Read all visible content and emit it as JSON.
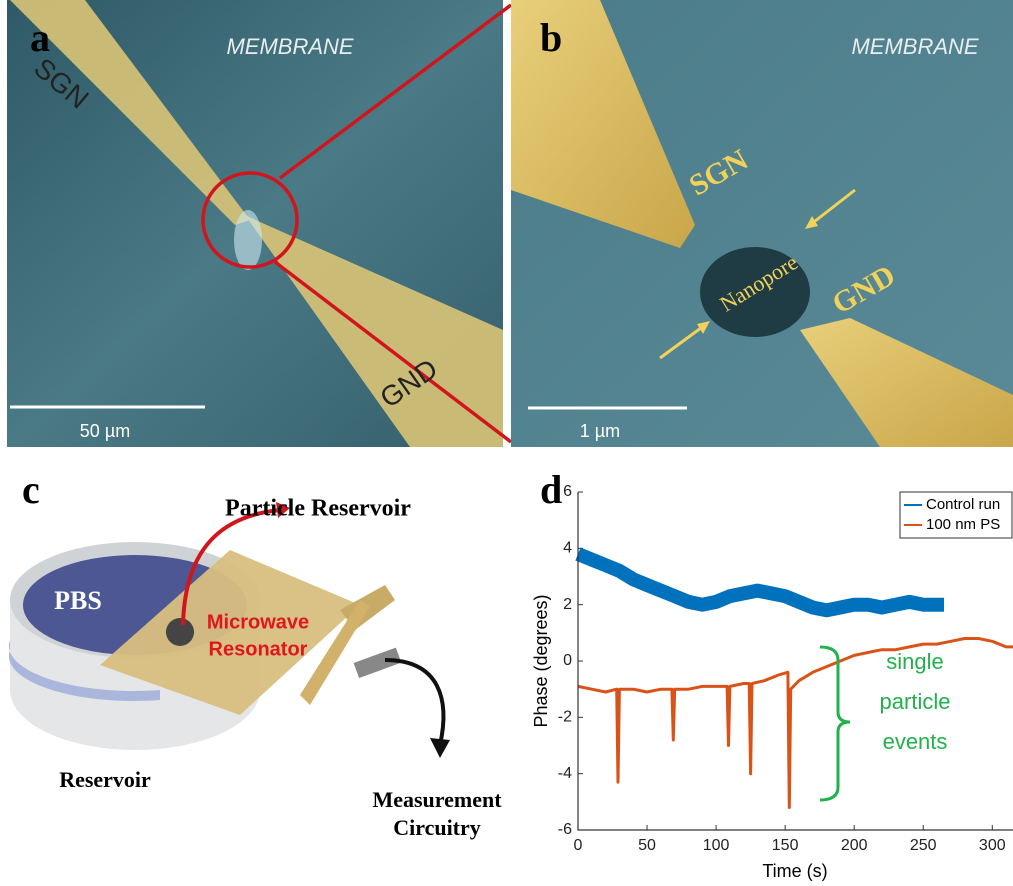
{
  "panels": {
    "a": {
      "label": "a",
      "membrane": "MEMBRANE",
      "sgn": "SGN",
      "gnd": "GND",
      "scale": "50 µm"
    },
    "b": {
      "label": "b",
      "membrane": "MEMBRANE",
      "sgn": "SGN",
      "gnd": "GND",
      "nanopore": "Nanopore",
      "scale": "1 µm"
    },
    "c": {
      "label": "c",
      "particle_reservoir": "Particle Reservoir",
      "pbs": "PBS",
      "resonator": [
        "Microwave",
        "Resonator"
      ],
      "reservoir": "Reservoir",
      "measurement": [
        "Measurement",
        "Circuitry"
      ]
    }
  },
  "chart_data": {
    "type": "line",
    "label": "d",
    "xlabel": "Time (s)",
    "ylabel": "Phase  (degrees)",
    "xlim": [
      0,
      315
    ],
    "xticks": [
      0,
      50,
      100,
      150,
      200,
      250,
      300
    ],
    "ylim": [
      -6,
      6
    ],
    "yticks": [
      -6,
      -4,
      -2,
      0,
      2,
      4,
      6
    ],
    "legend": "upper right",
    "annotation": [
      "single",
      "particle",
      "events"
    ],
    "annotation_color": "#22b14c",
    "series": [
      {
        "name": "Control run",
        "color": "#0072bd",
        "x": [
          0,
          10,
          20,
          30,
          40,
          50,
          60,
          70,
          80,
          90,
          100,
          110,
          120,
          130,
          140,
          150,
          160,
          170,
          180,
          190,
          200,
          210,
          220,
          230,
          240,
          250,
          260,
          265
        ],
        "values": [
          3.8,
          3.6,
          3.4,
          3.2,
          2.9,
          2.7,
          2.5,
          2.3,
          2.1,
          2.0,
          2.1,
          2.3,
          2.4,
          2.5,
          2.4,
          2.3,
          2.1,
          1.9,
          1.8,
          1.9,
          2.0,
          2.0,
          1.9,
          2.0,
          2.1,
          2.0,
          2.0,
          2.0
        ]
      },
      {
        "name": "100 nm PS",
        "color": "#d95319",
        "x": [
          0,
          10,
          20,
          28,
          29,
          30,
          40,
          50,
          60,
          68,
          69,
          70,
          80,
          90,
          100,
          108,
          109,
          110,
          120,
          124,
          125,
          126,
          135,
          145,
          152,
          153,
          154,
          160,
          170,
          180,
          190,
          200,
          210,
          220,
          230,
          240,
          250,
          260,
          270,
          280,
          290,
          300,
          310,
          315
        ],
        "values": [
          -0.9,
          -1.0,
          -1.1,
          -1.0,
          -4.3,
          -1.0,
          -1.0,
          -1.1,
          -1.0,
          -1.0,
          -2.8,
          -1.0,
          -1.0,
          -0.9,
          -0.9,
          -0.9,
          -3.0,
          -0.9,
          -0.8,
          -0.8,
          -4.0,
          -0.8,
          -0.7,
          -0.5,
          -0.4,
          -5.2,
          -1.0,
          -0.7,
          -0.4,
          -0.2,
          0,
          0.2,
          0.3,
          0.4,
          0.4,
          0.5,
          0.6,
          0.6,
          0.7,
          0.8,
          0.8,
          0.7,
          0.5,
          0.5
        ]
      }
    ]
  }
}
